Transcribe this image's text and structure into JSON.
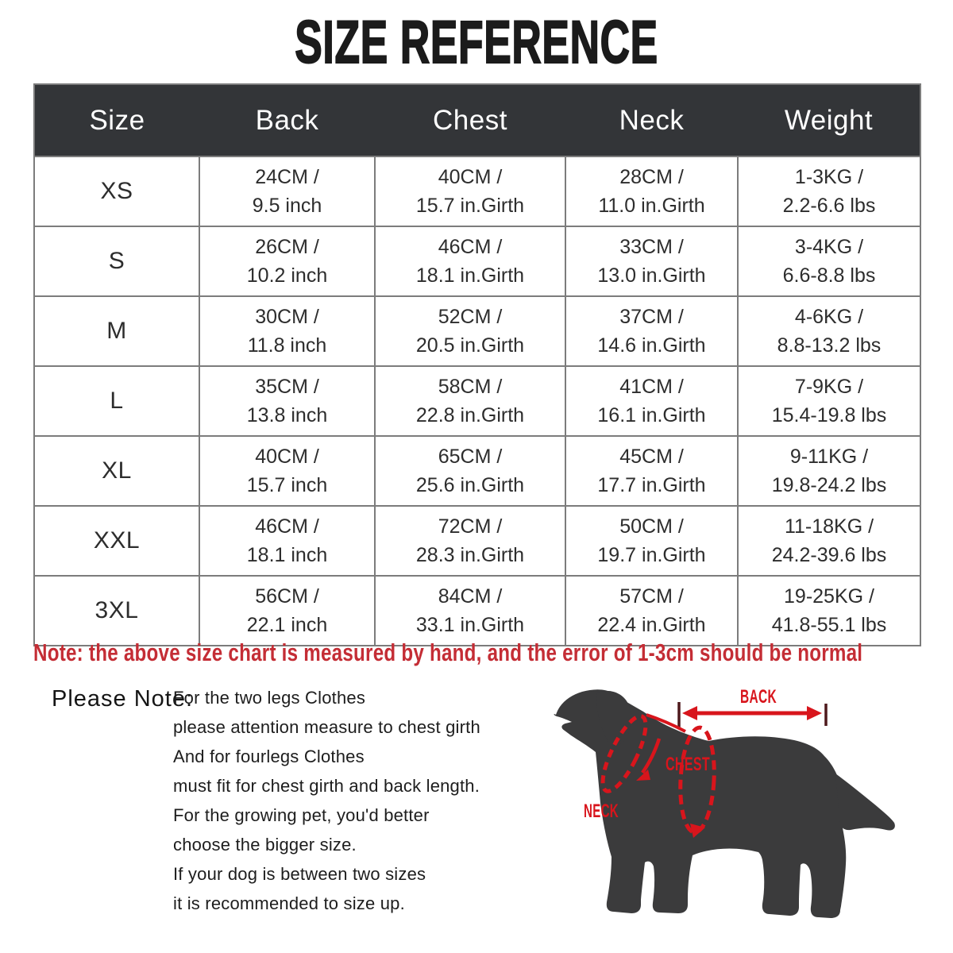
{
  "title": "SIZE REFERENCE",
  "chart_data": {
    "type": "table",
    "title": "SIZE REFERENCE",
    "columns": [
      "Size",
      "Back",
      "Chest",
      "Neck",
      "Weight"
    ],
    "rows": [
      [
        "XS",
        "24CM / 9.5 inch",
        "40CM / 15.7 in.Girth",
        "28CM / 11.0 in.Girth",
        "1-3KG / 2.2-6.6 lbs"
      ],
      [
        "S",
        "26CM / 10.2 inch",
        "46CM / 18.1 in.Girth",
        "33CM / 13.0 in.Girth",
        "3-4KG / 6.6-8.8 lbs"
      ],
      [
        "M",
        "30CM / 11.8 inch",
        "52CM / 20.5 in.Girth",
        "37CM / 14.6 in.Girth",
        "4-6KG / 8.8-13.2 lbs"
      ],
      [
        "L",
        "35CM / 13.8 inch",
        "58CM / 22.8 in.Girth",
        "41CM / 16.1 in.Girth",
        "7-9KG / 15.4-19.8 lbs"
      ],
      [
        "XL",
        "40CM / 15.7 inch",
        "65CM / 25.6 in.Girth",
        "45CM / 17.7 in.Girth",
        "9-11KG / 19.8-24.2 lbs"
      ],
      [
        "XXL",
        "46CM / 18.1 inch",
        "72CM / 28.3 in.Girth",
        "50CM / 19.7 in.Girth",
        "11-18KG / 24.2-39.6 lbs"
      ],
      [
        "3XL",
        "56CM / 22.1 inch",
        "84CM / 33.1 in.Girth",
        "57CM / 22.4 in.Girth",
        "19-25KG / 41.8-55.1 lbs"
      ]
    ]
  },
  "table": {
    "headers": [
      "Size",
      "Back",
      "Chest",
      "Neck",
      "Weight"
    ],
    "rows": [
      {
        "size": "XS",
        "back": [
          "24CM /",
          "9.5 inch"
        ],
        "chest": [
          "40CM /",
          "15.7 in.Girth"
        ],
        "neck": [
          "28CM /",
          "11.0 in.Girth"
        ],
        "weight": [
          "1-3KG /",
          "2.2-6.6 lbs"
        ]
      },
      {
        "size": "S",
        "back": [
          "26CM /",
          "10.2 inch"
        ],
        "chest": [
          "46CM /",
          "18.1 in.Girth"
        ],
        "neck": [
          "33CM /",
          "13.0 in.Girth"
        ],
        "weight": [
          "3-4KG /",
          "6.6-8.8 lbs"
        ]
      },
      {
        "size": "M",
        "back": [
          "30CM /",
          "11.8 inch"
        ],
        "chest": [
          "52CM /",
          "20.5 in.Girth"
        ],
        "neck": [
          "37CM /",
          "14.6 in.Girth"
        ],
        "weight": [
          "4-6KG /",
          "8.8-13.2 lbs"
        ]
      },
      {
        "size": "L",
        "back": [
          "35CM /",
          "13.8 inch"
        ],
        "chest": [
          "58CM /",
          "22.8 in.Girth"
        ],
        "neck": [
          "41CM /",
          "16.1 in.Girth"
        ],
        "weight": [
          "7-9KG /",
          "15.4-19.8 lbs"
        ]
      },
      {
        "size": "XL",
        "back": [
          "40CM /",
          "15.7 inch"
        ],
        "chest": [
          "65CM /",
          "25.6 in.Girth"
        ],
        "neck": [
          "45CM /",
          "17.7 in.Girth"
        ],
        "weight": [
          "9-11KG /",
          "19.8-24.2 lbs"
        ]
      },
      {
        "size": "XXL",
        "back": [
          "46CM /",
          "18.1 inch"
        ],
        "chest": [
          "72CM /",
          "28.3 in.Girth"
        ],
        "neck": [
          "50CM /",
          "19.7 in.Girth"
        ],
        "weight": [
          "11-18KG /",
          "24.2-39.6 lbs"
        ]
      },
      {
        "size": "3XL",
        "back": [
          "56CM /",
          "22.1 inch"
        ],
        "chest": [
          "84CM /",
          "33.1 in.Girth"
        ],
        "neck": [
          "57CM /",
          "22.4 in.Girth"
        ],
        "weight": [
          "19-25KG /",
          "41.8-55.1 lbs"
        ]
      }
    ]
  },
  "note": "Note: the above size chart is measured by hand, and the error of 1-3cm should be normal",
  "please_note": {
    "label": "Please Note:",
    "lines": [
      "For the two legs Clothes",
      "please attention measure to chest girth",
      "And for fourlegs Clothes",
      "must fit for chest girth and back length.",
      "For the growing pet, you'd better",
      "choose the bigger size.",
      "If your dog is between two sizes",
      "it is recommended to size up."
    ]
  },
  "diagram": {
    "back_label": "BACK",
    "chest_label": "CHEST",
    "neck_label": "NECK"
  },
  "colors": {
    "title_black": "#1b1b1b",
    "header_bg": "#333538",
    "header_text": "#ffffff",
    "border_gray": "#7c7c7c",
    "cell_text": "#2d2d2d",
    "note_red": "#c42d35",
    "diagram_red": "#d8151c",
    "tick_dark": "#4e191c",
    "dog_gray": "#3b3b3c"
  }
}
